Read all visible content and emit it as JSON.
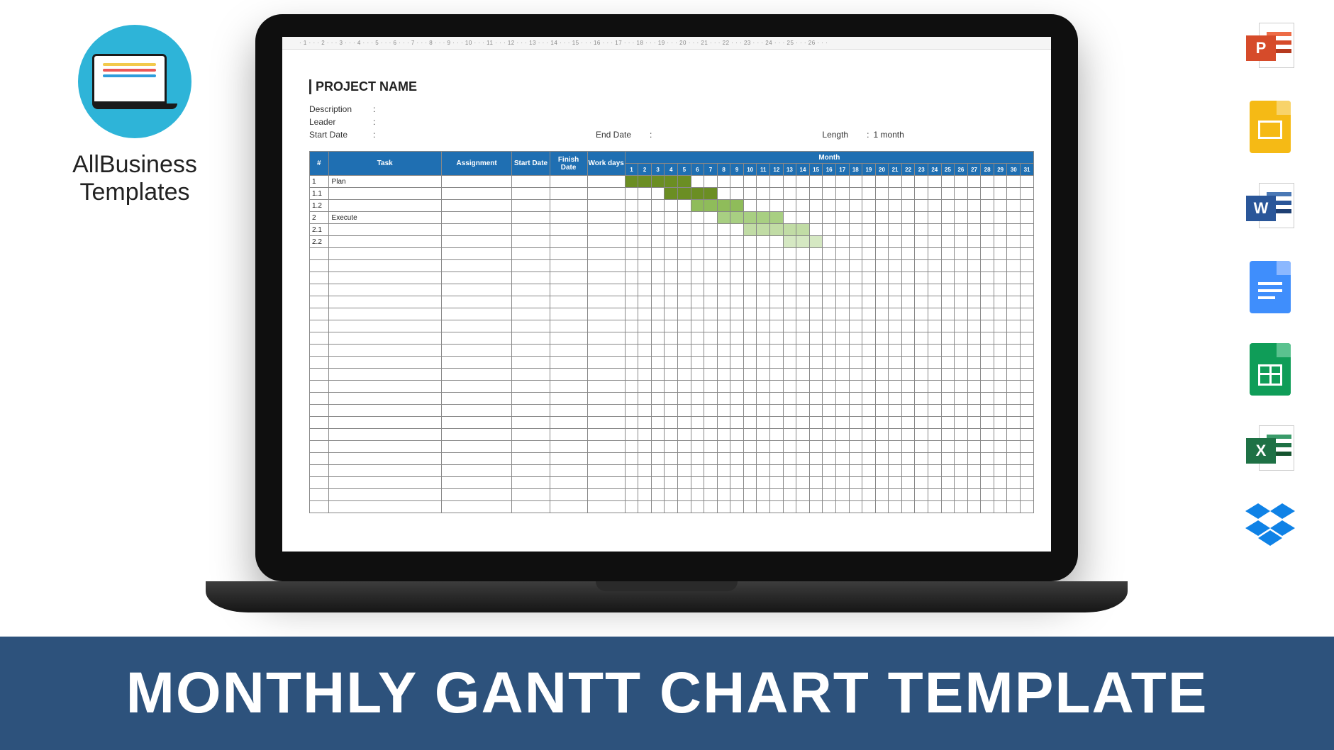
{
  "brand": {
    "line1": "AllBusiness",
    "line2": "Templates",
    "circle_bg": "#2eb4d8",
    "screen_lines": [
      "#f2c94c",
      "#eb5757",
      "#2d9cdb"
    ]
  },
  "banner": {
    "text": "MONTHLY GANTT CHART TEMPLATE",
    "bg": "#2d527c",
    "color": "#ffffff"
  },
  "file_icons": [
    {
      "name": "powerpoint",
      "badge_bg": "#d64b2a",
      "badge_border": "#b63a1e",
      "letter": "P",
      "stripes": [
        "#ed6c47",
        "#d64b2a",
        "#b63a1e"
      ]
    },
    {
      "name": "google-slides",
      "body": "#f5ba15",
      "fold": "#f8d36a"
    },
    {
      "name": "word",
      "badge_bg": "#2a5699",
      "badge_border": "#1e3f73",
      "letter": "W",
      "stripes": [
        "#4a78b5",
        "#2a5699",
        "#1e3f73"
      ]
    },
    {
      "name": "google-docs",
      "body": "#3f8efc",
      "fold": "#8cb8ff"
    },
    {
      "name": "google-sheets",
      "body": "#0f9d58",
      "fold": "#5ac28f"
    },
    {
      "name": "excel",
      "badge_bg": "#1e7145",
      "badge_border": "#15542f",
      "letter": "X",
      "stripes": [
        "#3a9b6a",
        "#1e7145",
        "#15542f"
      ]
    },
    {
      "name": "dropbox",
      "color": "#0f82e6"
    }
  ],
  "ruler_ticks": "· 1 · · · 2 · · · 3 · · · 4 · · · 5 · · · 6 · · · 7 · · · 8 · · · 9 · · · 10 · · · 11 · · · 12 · · · 13 · · · 14 · · · 15 · · · 16 · · · 17 · · · 18 · · · 19 · · · 20 · · · 21 · · · 22 · · · 23 · · · 24 · · · 25 · · · 26 · · ·",
  "doc": {
    "title": "PROJECT NAME",
    "meta": {
      "description_label": "Description",
      "leader_label": "Leader",
      "start_date_label": "Start Date",
      "end_date_label": "End Date",
      "length_label": "Length",
      "length_value": "1 month"
    }
  },
  "gantt": {
    "type": "gantt",
    "header_bg": "#1f6fb2",
    "header_color": "#ffffff",
    "grid_color": "#888888",
    "columns": {
      "num": "#",
      "task": "Task",
      "assignment": "Assignment",
      "start_date": "Start Date",
      "finish_date": "Finish Date",
      "work_days": "Work days",
      "month": "Month"
    },
    "days": [
      1,
      2,
      3,
      4,
      5,
      6,
      7,
      8,
      9,
      10,
      11,
      12,
      13,
      14,
      15,
      16,
      17,
      18,
      19,
      20,
      21,
      22,
      23,
      24,
      25,
      26,
      27,
      28,
      29,
      30,
      31
    ],
    "rows": [
      {
        "num": "1",
        "task": "Plan",
        "bar": {
          "start": 1,
          "end": 5,
          "color": "#6b8e23"
        }
      },
      {
        "num": "1.1",
        "task": "",
        "bar": {
          "start": 4,
          "end": 7,
          "color": "#6b8e23"
        }
      },
      {
        "num": "1.2",
        "task": "",
        "bar": {
          "start": 6,
          "end": 9,
          "color": "#8fbc5a"
        }
      },
      {
        "num": "2",
        "task": "Execute",
        "bar": {
          "start": 8,
          "end": 12,
          "color": "#a8cf82"
        }
      },
      {
        "num": "2.1",
        "task": "",
        "bar": {
          "start": 10,
          "end": 14,
          "color": "#c1dca5"
        }
      },
      {
        "num": "2.2",
        "task": "",
        "bar": {
          "start": 13,
          "end": 15,
          "color": "#d5e8c2"
        }
      }
    ],
    "empty_rows": 22,
    "col_widths": {
      "num": 20,
      "task": 120,
      "assign": 75,
      "date": 40,
      "day": 14
    }
  }
}
